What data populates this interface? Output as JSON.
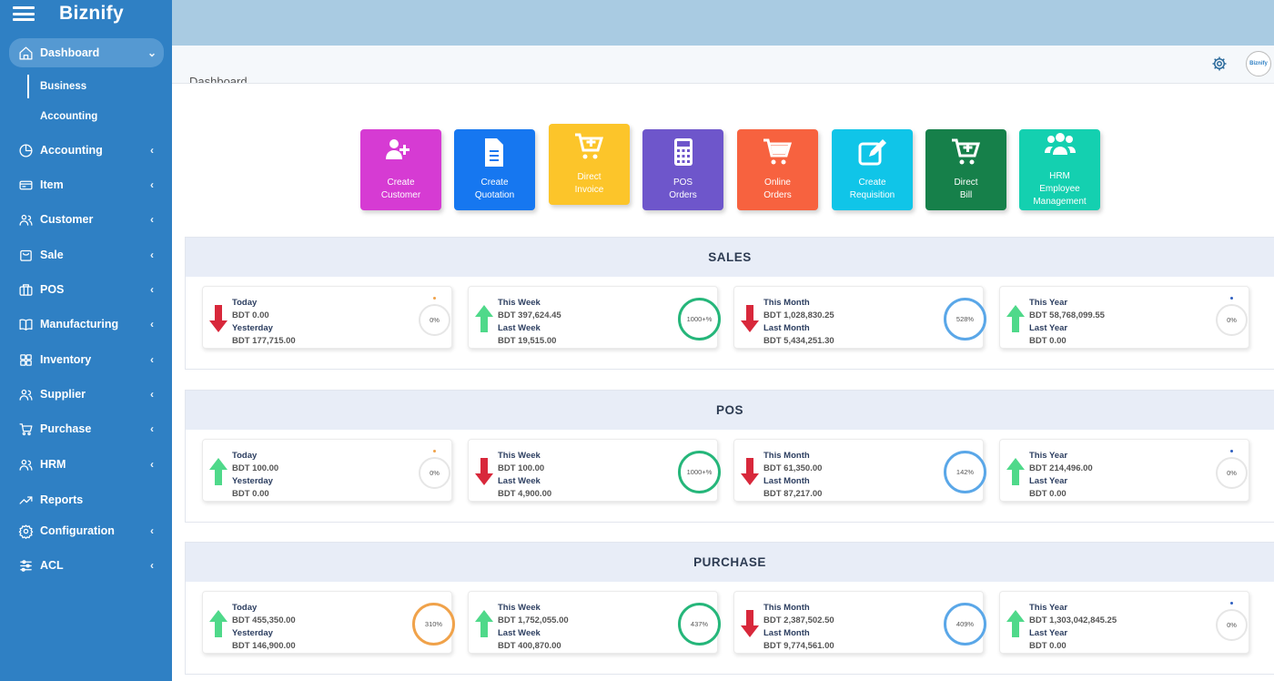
{
  "app": {
    "name": "Biznify",
    "page_title": "Dashboard",
    "avatar_text": "Biznify"
  },
  "sidebar": {
    "items": [
      {
        "label": "Dashboard",
        "icon": "home-icon",
        "active": true,
        "expanded": true
      },
      {
        "label": "Accounting",
        "icon": "pie-chart-icon"
      },
      {
        "label": "Item",
        "icon": "card-icon"
      },
      {
        "label": "Customer",
        "icon": "users-icon"
      },
      {
        "label": "Sale",
        "icon": "bag-icon"
      },
      {
        "label": "POS",
        "icon": "briefcase-icon"
      },
      {
        "label": "Manufacturing",
        "icon": "book-icon"
      },
      {
        "label": "Inventory",
        "icon": "grid-icon"
      },
      {
        "label": "Supplier",
        "icon": "users-icon"
      },
      {
        "label": "Purchase",
        "icon": "cart-icon"
      },
      {
        "label": "HRM",
        "icon": "users-icon"
      },
      {
        "label": "Reports",
        "icon": "trend-icon"
      },
      {
        "label": "Configuration",
        "icon": "gear-icon"
      },
      {
        "label": "ACL",
        "icon": "sliders-icon"
      }
    ],
    "subitems": [
      {
        "label": "Business",
        "active": true
      },
      {
        "label": "Accounting"
      }
    ]
  },
  "quick_actions": [
    {
      "line1": "Create",
      "line2": "Customer",
      "icon": "user-plus-icon",
      "color": "#d63bd3"
    },
    {
      "line1": "Create",
      "line2": "Quotation",
      "icon": "document-icon",
      "color": "#1677f0"
    },
    {
      "line1": "Direct",
      "line2": "Invoice",
      "icon": "cart-plus-icon",
      "color": "#fcc52a"
    },
    {
      "line1": "POS",
      "line2": "Orders",
      "icon": "calculator-icon",
      "color": "#6e56cb"
    },
    {
      "line1": "Online",
      "line2": "Orders",
      "icon": "cart-icon",
      "color": "#f7623f"
    },
    {
      "line1": "Create",
      "line2": "Requisition",
      "icon": "edit-icon",
      "color": "#10c5e8"
    },
    {
      "line1": "Direct",
      "line2": "Bill",
      "icon": "cart-plus-icon",
      "color": "#16804a"
    },
    {
      "line1": "HRM",
      "line2": "Employee",
      "line3": "Management",
      "icon": "group-icon",
      "color": "#14d0b0"
    }
  ],
  "colors": {
    "up": "#4fd98a",
    "down": "#d8283b",
    "ring_green": "#25b67a",
    "ring_blue": "#5aa7e8",
    "ring_orange": "#f0a24a",
    "dot_orange": "#f0a24a",
    "dot_blue": "#2f5fc0"
  },
  "sections": [
    {
      "title": "SALES",
      "cards": [
        {
          "label1": "Today",
          "value1": "BDT 0.00",
          "label2": "Yesterday",
          "value2": "BDT 177,715.00",
          "trend": "down",
          "percent": "0%",
          "ring": "none",
          "dot": "orange"
        },
        {
          "label1": "This Week",
          "value1": "BDT 397,624.45",
          "label2": "Last Week",
          "value2": "BDT 19,515.00",
          "trend": "up",
          "percent": "1000+%",
          "ring": "green"
        },
        {
          "label1": "This Month",
          "value1": "BDT 1,028,830.25",
          "label2": "Last Month",
          "value2": "BDT 5,434,251.30",
          "trend": "down",
          "percent": "528%",
          "ring": "blue"
        },
        {
          "label1": "This Year",
          "value1": "BDT 58,768,099.55",
          "label2": "Last Year",
          "value2": "BDT 0.00",
          "trend": "up",
          "percent": "0%",
          "ring": "none",
          "dot": "blue"
        }
      ]
    },
    {
      "title": "POS",
      "cards": [
        {
          "label1": "Today",
          "value1": "BDT 100.00",
          "label2": "Yesterday",
          "value2": "BDT 0.00",
          "trend": "up",
          "percent": "0%",
          "ring": "none",
          "dot": "orange"
        },
        {
          "label1": "This Week",
          "value1": "BDT 100.00",
          "label2": "Last Week",
          "value2": "BDT 4,900.00",
          "trend": "down",
          "percent": "1000+%",
          "ring": "green"
        },
        {
          "label1": "This Month",
          "value1": "BDT 61,350.00",
          "label2": "Last Month",
          "value2": "BDT 87,217.00",
          "trend": "down",
          "percent": "142%",
          "ring": "blue"
        },
        {
          "label1": "This Year",
          "value1": "BDT 214,496.00",
          "label2": "Last Year",
          "value2": "BDT 0.00",
          "trend": "up",
          "percent": "0%",
          "ring": "none",
          "dot": "blue"
        }
      ]
    },
    {
      "title": "PURCHASE",
      "cards": [
        {
          "label1": "Today",
          "value1": "BDT 455,350.00",
          "label2": "Yesterday",
          "value2": "BDT 146,900.00",
          "trend": "up",
          "percent": "310%",
          "ring": "orange"
        },
        {
          "label1": "This Week",
          "value1": "BDT 1,752,055.00",
          "label2": "Last Week",
          "value2": "BDT 400,870.00",
          "trend": "up",
          "percent": "437%",
          "ring": "green"
        },
        {
          "label1": "This Month",
          "value1": "BDT 2,387,502.50",
          "label2": "Last Month",
          "value2": "BDT 9,774,561.00",
          "trend": "down",
          "percent": "409%",
          "ring": "blue"
        },
        {
          "label1": "This Year",
          "value1": "BDT 1,303,042,845.25",
          "label2": "Last Year",
          "value2": "BDT 0.00",
          "trend": "up",
          "percent": "0%",
          "ring": "none",
          "dot": "blue"
        }
      ]
    }
  ]
}
